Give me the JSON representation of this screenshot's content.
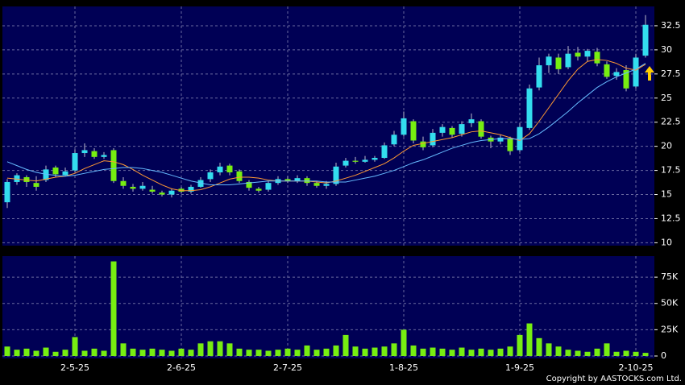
{
  "chart_data": [
    {
      "type": "candlestick",
      "open": [
        14.2,
        16.3,
        16.8,
        16.2,
        16.5,
        17.8,
        17.0,
        17.5,
        19.3,
        19.5,
        18.9,
        19.6,
        16.4,
        15.8,
        15.6,
        15.5,
        15.2,
        15.0,
        15.6,
        15.3,
        15.8,
        16.6,
        17.3,
        18.0,
        17.4,
        16.3,
        15.6,
        15.5,
        16.2,
        16.6,
        16.4,
        16.7,
        16.2,
        15.9,
        16.1,
        18.0,
        18.5,
        18.4,
        18.6,
        18.8,
        20.2,
        21.2,
        22.6,
        20.5,
        20.1,
        21.4,
        21.9,
        21.3,
        22.4,
        22.6,
        20.9,
        20.5,
        20.8,
        19.6,
        21.9,
        26.1,
        28.4,
        29.2,
        28.2,
        29.7,
        29.3,
        29.8,
        28.5,
        27.3,
        27.9,
        26.2,
        29.4
      ],
      "high": [
        16.6,
        17.2,
        17.0,
        16.9,
        18.0,
        18.0,
        17.8,
        19.7,
        20.3,
        19.8,
        19.4,
        19.8,
        16.8,
        16.1,
        16.3,
        15.9,
        15.4,
        15.6,
        15.8,
        16.0,
        16.8,
        17.6,
        18.3,
        18.2,
        17.6,
        16.5,
        15.8,
        16.4,
        16.9,
        16.9,
        17.0,
        16.9,
        16.4,
        16.4,
        18.3,
        18.8,
        18.9,
        19.0,
        19.0,
        20.4,
        21.6,
        23.6,
        22.8,
        21.0,
        21.8,
        22.3,
        22.1,
        22.6,
        23.4,
        22.8,
        21.1,
        21.2,
        21.0,
        22.4,
        26.4,
        29.2,
        29.6,
        29.6,
        30.4,
        30.3,
        30.1,
        30.2,
        28.8,
        28.1,
        28.4,
        29.6,
        33.6
      ],
      "low": [
        13.6,
        16.0,
        15.8,
        15.4,
        16.3,
        16.8,
        16.9,
        17.3,
        18.9,
        18.7,
        18.7,
        16.2,
        15.6,
        15.3,
        15.4,
        15.1,
        14.8,
        14.7,
        15.1,
        15.1,
        15.7,
        16.3,
        17.0,
        17.0,
        16.2,
        15.4,
        15.2,
        15.3,
        16.0,
        16.2,
        16.2,
        15.9,
        15.7,
        15.6,
        15.9,
        17.8,
        18.2,
        18.3,
        18.4,
        18.7,
        20.0,
        21.0,
        20.3,
        19.6,
        19.9,
        21.0,
        20.9,
        21.0,
        22.0,
        20.8,
        19.8,
        20.2,
        19.1,
        19.4,
        21.7,
        25.8,
        27.6,
        27.5,
        28.0,
        28.9,
        28.8,
        28.3,
        27.0,
        26.9,
        25.7,
        26.0,
        29.2
      ],
      "close": [
        16.3,
        17.0,
        16.3,
        15.8,
        17.6,
        17.1,
        17.4,
        19.3,
        19.6,
        18.9,
        19.1,
        16.4,
        15.9,
        15.6,
        15.9,
        15.3,
        15.0,
        15.4,
        15.3,
        15.8,
        16.5,
        17.3,
        17.9,
        17.3,
        16.4,
        15.7,
        15.4,
        16.2,
        16.6,
        16.4,
        16.7,
        16.2,
        15.9,
        16.1,
        17.9,
        18.5,
        18.4,
        18.6,
        18.8,
        20.1,
        21.2,
        22.9,
        20.6,
        19.9,
        21.4,
        22.0,
        21.2,
        22.3,
        22.8,
        21.0,
        20.5,
        20.9,
        19.5,
        22.0,
        26.0,
        28.4,
        29.3,
        28.0,
        29.6,
        29.3,
        29.9,
        28.6,
        27.2,
        27.7,
        26.0,
        29.2,
        32.6
      ],
      "up_color": "#33ddee",
      "down_color": "#77ee11",
      "lines": [
        {
          "color": "#ff9933",
          "values": [
            16.7,
            16.6,
            16.5,
            16.4,
            16.6,
            16.8,
            16.9,
            17.2,
            17.7,
            18.1,
            18.5,
            18.4,
            18.1,
            17.6,
            17.0,
            16.5,
            16.0,
            15.6,
            15.4,
            15.4,
            15.5,
            15.8,
            16.2,
            16.6,
            16.8,
            16.8,
            16.7,
            16.5,
            16.4,
            16.4,
            16.4,
            16.4,
            16.3,
            16.2,
            16.4,
            16.7,
            17.0,
            17.4,
            17.8,
            18.2,
            18.8,
            19.5,
            20.1,
            20.3,
            20.5,
            20.7,
            20.9,
            21.2,
            21.5,
            21.6,
            21.4,
            21.2,
            20.9,
            20.6,
            21.3,
            22.6,
            24.0,
            25.4,
            26.8,
            28.0,
            28.8,
            29.0,
            28.9,
            28.6,
            28.1,
            27.9,
            28.5
          ]
        },
        {
          "color": "#66bbff",
          "values": [
            18.4,
            18.0,
            17.6,
            17.3,
            17.1,
            17.0,
            16.9,
            17.0,
            17.2,
            17.4,
            17.6,
            17.7,
            17.8,
            17.8,
            17.7,
            17.5,
            17.3,
            17.0,
            16.7,
            16.4,
            16.2,
            16.0,
            16.0,
            16.0,
            16.1,
            16.2,
            16.3,
            16.4,
            16.4,
            16.4,
            16.4,
            16.4,
            16.4,
            16.3,
            16.3,
            16.3,
            16.5,
            16.7,
            16.9,
            17.2,
            17.5,
            17.9,
            18.3,
            18.6,
            19.0,
            19.4,
            19.8,
            20.1,
            20.4,
            20.6,
            20.7,
            20.8,
            20.8,
            20.7,
            20.8,
            21.3,
            22.0,
            22.8,
            23.6,
            24.5,
            25.3,
            26.1,
            26.7,
            27.2,
            27.6,
            28.0,
            28.6
          ]
        }
      ],
      "ylim": [
        9.7,
        34.5
      ],
      "yticks": [
        10,
        12.5,
        15,
        17.5,
        20,
        22.5,
        25,
        27.5,
        30,
        32.5
      ],
      "grid": true
    },
    {
      "type": "bar",
      "categories": [
        null,
        null,
        null,
        null,
        null,
        null,
        null,
        "2-5-25",
        null,
        null,
        null,
        null,
        null,
        null,
        null,
        null,
        null,
        null,
        "2-6-25",
        null,
        null,
        null,
        null,
        null,
        null,
        null,
        null,
        null,
        null,
        "2-7-25",
        null,
        null,
        null,
        null,
        null,
        null,
        null,
        null,
        null,
        null,
        null,
        "1-8-25",
        null,
        null,
        null,
        null,
        null,
        null,
        null,
        null,
        null,
        null,
        null,
        "1-9-25",
        null,
        null,
        null,
        null,
        null,
        null,
        null,
        null,
        null,
        null,
        null,
        "2-10-25",
        null
      ],
      "values": [
        9000,
        6000,
        7000,
        5000,
        8000,
        4000,
        6000,
        18000,
        5000,
        7000,
        5000,
        90000,
        12000,
        7000,
        6000,
        7000,
        6000,
        5000,
        7000,
        6000,
        12000,
        14000,
        14000,
        12000,
        7000,
        6000,
        6000,
        5000,
        6000,
        7000,
        6000,
        10000,
        6000,
        7000,
        10000,
        20000,
        9000,
        7000,
        8000,
        9000,
        12000,
        25000,
        10000,
        7000,
        8000,
        7000,
        6000,
        8000,
        6000,
        7000,
        6000,
        7000,
        9000,
        20000,
        31000,
        17000,
        12000,
        9000,
        6000,
        5000,
        4000,
        7000,
        12000,
        4000,
        5000,
        4000,
        3000
      ],
      "color": "#77ee11",
      "ylim": [
        -2300,
        95000
      ],
      "yticks": [
        0,
        {
          "value": 25000,
          "label": "25K"
        },
        {
          "value": 50000,
          "label": "50K"
        },
        {
          "value": 75000,
          "label": "75K"
        }
      ],
      "grid": true
    }
  ],
  "copyright": "Copyright by AASTOCKS.com Ltd."
}
